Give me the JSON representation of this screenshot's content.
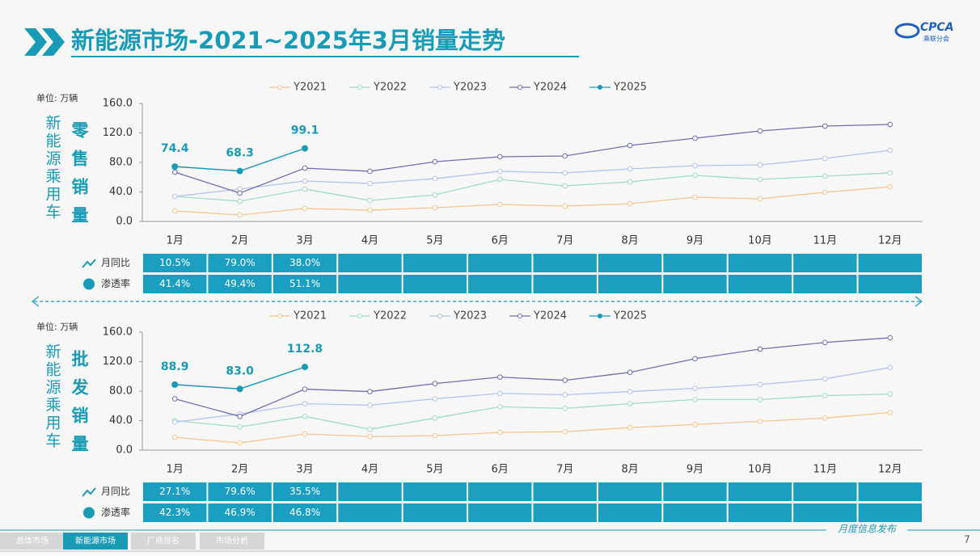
{
  "header": {
    "title": "新能源市场-2021~2025年3月销量走势"
  },
  "logo": {
    "name": "CPCA",
    "sub": "乘联分会"
  },
  "chart_data": [
    {
      "type": "line",
      "unit": "单位: 万辆",
      "side_label": "新能源乘用车",
      "title": "零售销量",
      "categories": [
        "1月",
        "2月",
        "3月",
        "4月",
        "5月",
        "6月",
        "7月",
        "8月",
        "9月",
        "10月",
        "11月",
        "12月"
      ],
      "ylim": [
        0,
        160
      ],
      "yticks": [
        {
          "value": 0,
          "label": "0.0"
        },
        {
          "value": 40,
          "label": "40.0"
        },
        {
          "value": 80,
          "label": "80.0"
        },
        {
          "value": 120,
          "label": "120.0"
        },
        {
          "value": 160,
          "label": "160.0"
        }
      ],
      "series": [
        {
          "name": "Y2021",
          "color": "#f6c58e",
          "values": [
            14.2,
            8.8,
            17.5,
            15.3,
            18.6,
            23,
            20.8,
            24,
            32.9,
            30.7,
            39.5,
            47
          ]
        },
        {
          "name": "Y2022",
          "color": "#9fdcc2",
          "values": [
            34,
            27.4,
            43.8,
            28.5,
            36,
            57,
            48.2,
            53.7,
            62.5,
            57,
            61.4,
            65.8
          ]
        },
        {
          "name": "Y2023",
          "color": "#b4c2ec",
          "values": [
            34,
            43.8,
            54.8,
            51.5,
            58,
            68,
            65.8,
            71.2,
            75.6,
            76.7,
            85.5,
            96.4
          ]
        },
        {
          "name": "Y2024",
          "color": "#6f6fae",
          "values": [
            66.8,
            38.4,
            72.3,
            68,
            81,
            87.7,
            88.8,
            103,
            112.9,
            122.7,
            129.3,
            131.5
          ]
        },
        {
          "name": "Y2025",
          "color": "#1a9bb5",
          "values": [
            74.4,
            68.3,
            99.1,
            null,
            null,
            null,
            null,
            null,
            null,
            null,
            null,
            null
          ],
          "value_labels": [
            "74.4",
            "68.3",
            "99.1",
            null,
            null,
            null,
            null,
            null,
            null,
            null,
            null,
            null
          ]
        }
      ],
      "table": [
        {
          "label": "月同比",
          "values": [
            "10.5%",
            "79.0%",
            "38.0%"
          ]
        },
        {
          "label": "渗透率",
          "values": [
            "41.4%",
            "49.4%",
            "51.1%"
          ]
        }
      ]
    },
    {
      "type": "line",
      "unit": "单位: 万辆",
      "side_label": "新能源乘用车",
      "title": "批发销量",
      "categories": [
        "1月",
        "2月",
        "3月",
        "4月",
        "5月",
        "6月",
        "7月",
        "8月",
        "9月",
        "10月",
        "11月",
        "12月"
      ],
      "ylim": [
        0,
        160
      ],
      "yticks": [
        {
          "value": 0,
          "label": "0.0"
        },
        {
          "value": 40,
          "label": "40.0"
        },
        {
          "value": 80,
          "label": "80.0"
        },
        {
          "value": 120,
          "label": "120.0"
        },
        {
          "value": 160,
          "label": "160.0"
        }
      ],
      "series": [
        {
          "name": "Y2021",
          "color": "#f6c58e",
          "values": [
            17.4,
            9.8,
            21.8,
            18.5,
            19.6,
            24,
            25,
            30.5,
            34.8,
            39,
            43.5,
            51
          ]
        },
        {
          "name": "Y2022",
          "color": "#9fdcc2",
          "values": [
            40,
            31.5,
            45.7,
            28.3,
            43.5,
            58.8,
            56.6,
            63,
            68.6,
            68.6,
            74,
            76
          ]
        },
        {
          "name": "Y2023",
          "color": "#b4c2ec",
          "values": [
            38,
            49,
            63,
            61,
            69.6,
            77,
            75,
            79.4,
            83.8,
            89,
            96.8,
            112
          ]
        },
        {
          "name": "Y2024",
          "color": "#6f6fae",
          "values": [
            69.6,
            45.7,
            82.7,
            79.4,
            90.3,
            99,
            94.7,
            105.5,
            124,
            137,
            146,
            152.4
          ]
        },
        {
          "name": "Y2025",
          "color": "#1a9bb5",
          "values": [
            88.9,
            83.0,
            112.8,
            null,
            null,
            null,
            null,
            null,
            null,
            null,
            null,
            null
          ],
          "value_labels": [
            "88.9",
            "83.0",
            "112.8",
            null,
            null,
            null,
            null,
            null,
            null,
            null,
            null,
            null
          ]
        }
      ],
      "table": [
        {
          "label": "月同比",
          "values": [
            "27.1%",
            "79.6%",
            "35.5%"
          ]
        },
        {
          "label": "渗透率",
          "values": [
            "42.3%",
            "46.9%",
            "46.8%"
          ]
        }
      ]
    }
  ],
  "tabs": [
    "总体市场",
    "新能源市场",
    "厂商排名",
    "市场分析"
  ],
  "footer": {
    "note": "月度信息发布",
    "page": "7"
  }
}
